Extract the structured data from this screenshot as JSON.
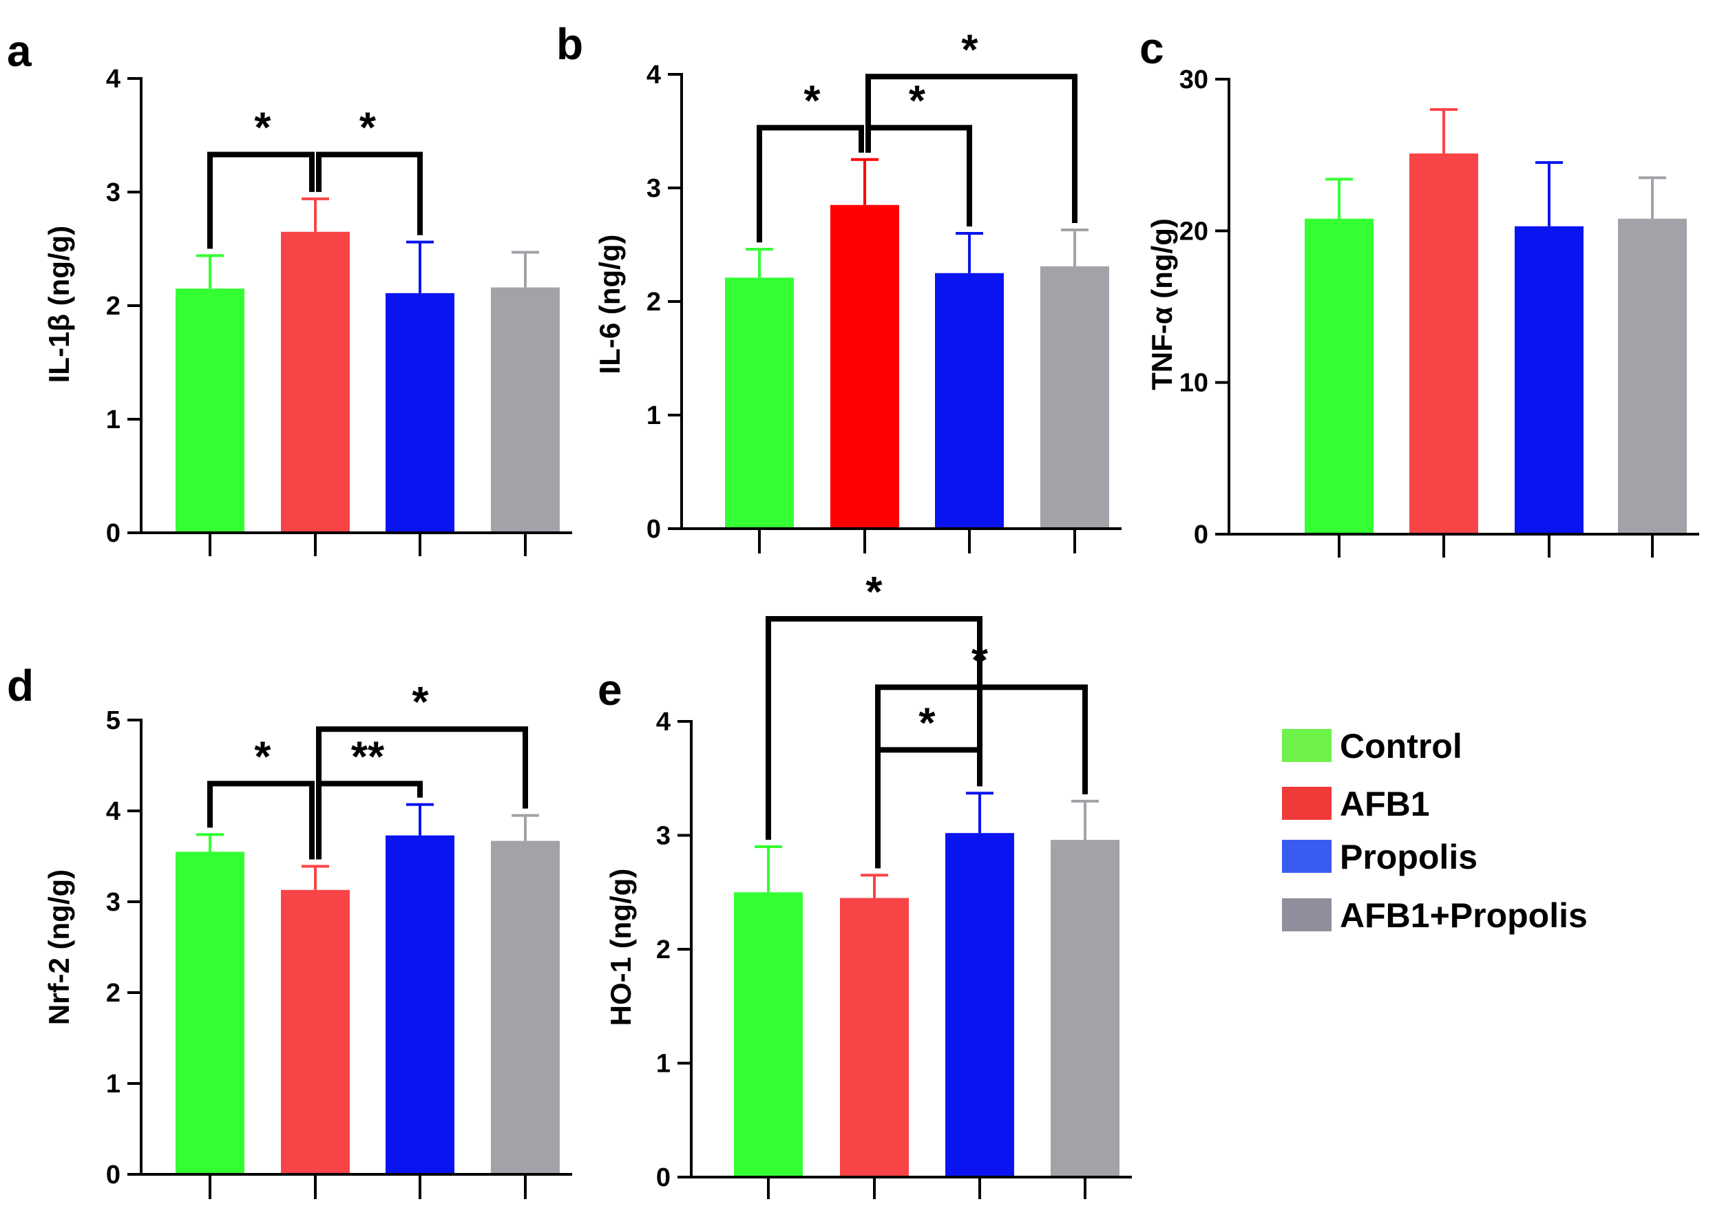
{
  "groups": [
    "Control",
    "AFB1",
    "Propolis",
    "AFB1+Propolis"
  ],
  "colors": {
    "Control": "#33FF33",
    "AFB1": "#F94447",
    "Propolis": "#0A14F0",
    "AFB1+Propolis": "#A3A2A8",
    "AFB1_panel_b": "#FF0000"
  },
  "legend": {
    "items": [
      {
        "label": "Control",
        "color": "#6EF24A"
      },
      {
        "label": "AFB1",
        "color": "#F03A3A"
      },
      {
        "label": "Propolis",
        "color": "#3A5BF0"
      },
      {
        "label": "AFB1+Propolis",
        "color": "#8E8E9C"
      }
    ]
  },
  "chart_data": [
    {
      "panel": "a",
      "type": "bar",
      "ylabel": "IL-1β (ng/g)",
      "ylim": [
        0,
        4
      ],
      "yticks": [
        0,
        1,
        2,
        3,
        4
      ],
      "categories": [
        "Control",
        "AFB1",
        "Propolis",
        "AFB1+Propolis"
      ],
      "values": [
        2.15,
        2.65,
        2.11,
        2.16
      ],
      "errors": [
        0.29,
        0.29,
        0.45,
        0.31
      ],
      "significance": [
        {
          "from": 1,
          "to": 0,
          "label": "*",
          "level": 3.33
        },
        {
          "from": 1,
          "to": 2,
          "label": "*",
          "level": 3.33
        }
      ]
    },
    {
      "panel": "b",
      "type": "bar",
      "ylabel": "IL-6 (ng/g)",
      "ylim": [
        0,
        4
      ],
      "yticks": [
        0,
        1,
        2,
        3,
        4
      ],
      "categories": [
        "Control",
        "AFB1",
        "Propolis",
        "AFB1+Propolis"
      ],
      "values": [
        2.21,
        2.85,
        2.25,
        2.31
      ],
      "errors": [
        0.25,
        0.4,
        0.35,
        0.32
      ],
      "significance": [
        {
          "from": 1,
          "to": 0,
          "label": "*",
          "level": 3.53
        },
        {
          "from": 1,
          "to": 2,
          "label": "*",
          "level": 3.53
        },
        {
          "from": 1,
          "to": 3,
          "label": "*",
          "level": 3.98
        }
      ]
    },
    {
      "panel": "c",
      "type": "bar",
      "ylabel": "TNF-α (ng/g)",
      "ylim": [
        0,
        30
      ],
      "yticks": [
        0,
        10,
        20,
        30
      ],
      "categories": [
        "Control",
        "AFB1",
        "Propolis",
        "AFB1+Propolis"
      ],
      "values": [
        20.8,
        25.1,
        20.3,
        20.8
      ],
      "errors": [
        2.6,
        2.9,
        4.2,
        2.7
      ],
      "significance": []
    },
    {
      "panel": "d",
      "type": "bar",
      "ylabel": "Nrf-2 (ng/g)",
      "ylim": [
        0,
        5
      ],
      "yticks": [
        0,
        1,
        2,
        3,
        4,
        5
      ],
      "categories": [
        "Control",
        "AFB1",
        "Propolis",
        "AFB1+Propolis"
      ],
      "values": [
        3.55,
        3.13,
        3.73,
        3.67
      ],
      "errors": [
        0.19,
        0.26,
        0.34,
        0.28
      ],
      "significance": [
        {
          "from": 1,
          "to": 0,
          "label": "*",
          "level": 4.3
        },
        {
          "from": 1,
          "to": 2,
          "label": "**",
          "level": 4.3
        },
        {
          "from": 1,
          "to": 3,
          "label": "*",
          "level": 4.9
        }
      ]
    },
    {
      "panel": "e",
      "type": "bar",
      "ylabel": "HO-1 (ng/g)",
      "ylim": [
        0,
        4
      ],
      "yticks": [
        0,
        1,
        2,
        3,
        4
      ],
      "categories": [
        "Control",
        "AFB1",
        "Propolis",
        "AFB1+Propolis"
      ],
      "values": [
        2.5,
        2.45,
        3.02,
        2.96
      ],
      "errors": [
        0.4,
        0.2,
        0.35,
        0.34
      ],
      "significance": [
        {
          "from": 0,
          "to": 2,
          "label": "*",
          "level": 4.9
        },
        {
          "from": 1,
          "to": 2,
          "label": "*",
          "level": 3.75
        },
        {
          "from": 1,
          "to": 3,
          "label": "*",
          "level": 4.3
        }
      ]
    }
  ]
}
